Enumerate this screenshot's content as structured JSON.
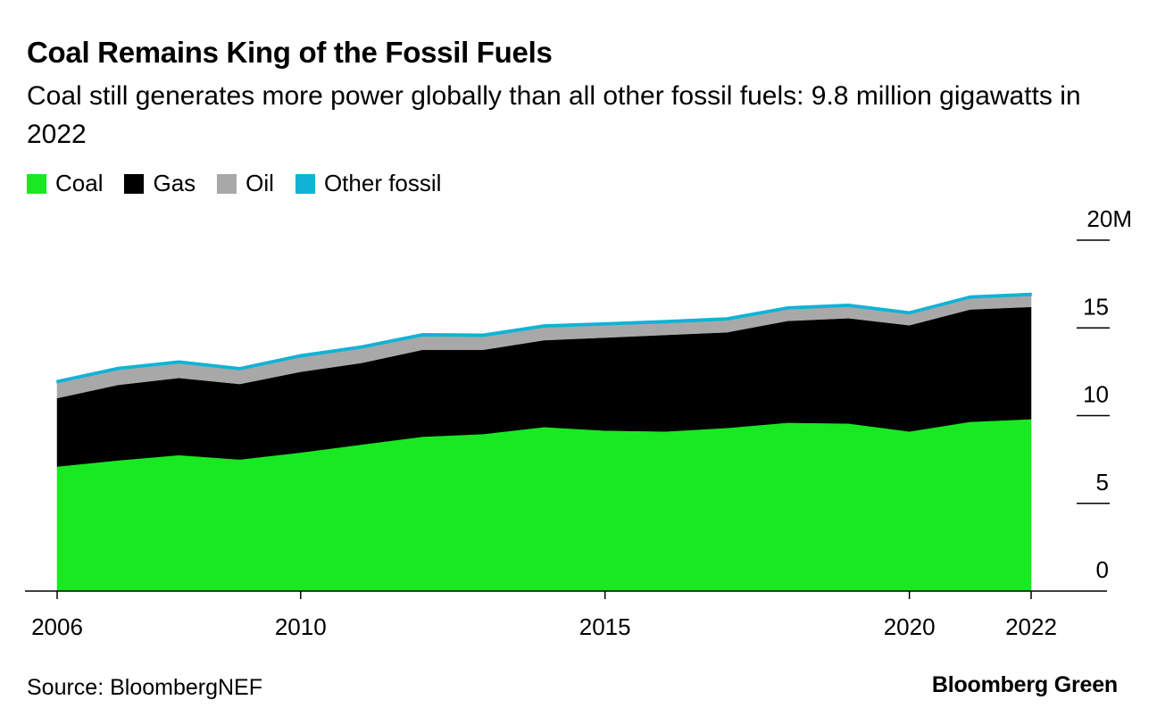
{
  "title": "Coal Remains King of the Fossil Fuels",
  "subtitle": "Coal still generates more power globally than all other fossil fuels: 9.8 million gigawatts in 2022",
  "source": "Source: BloombergNEF",
  "brand": "Bloomberg Green",
  "colors": {
    "coal": "#18e922",
    "gas": "#000000",
    "oil": "#a8a8a8",
    "other": "#10b3d6"
  },
  "chart_data": {
    "type": "area",
    "stacked": true,
    "x": [
      2006,
      2007,
      2008,
      2009,
      2010,
      2011,
      2012,
      2013,
      2014,
      2015,
      2016,
      2017,
      2018,
      2019,
      2020,
      2021,
      2022
    ],
    "series": [
      {
        "name": "Coal",
        "color": "#18e922",
        "values": [
          7.1,
          7.45,
          7.75,
          7.5,
          7.9,
          8.35,
          8.8,
          8.95,
          9.35,
          9.15,
          9.1,
          9.3,
          9.6,
          9.55,
          9.1,
          9.65,
          9.8
        ]
      },
      {
        "name": "Gas",
        "color": "#000000",
        "values": [
          3.9,
          4.3,
          4.4,
          4.3,
          4.6,
          4.65,
          4.95,
          4.8,
          4.95,
          5.3,
          5.5,
          5.45,
          5.8,
          6.0,
          6.05,
          6.4,
          6.4
        ]
      },
      {
        "name": "Oil",
        "color": "#a8a8a8",
        "values": [
          0.88,
          0.88,
          0.85,
          0.82,
          0.85,
          0.85,
          0.8,
          0.77,
          0.75,
          0.72,
          0.7,
          0.7,
          0.68,
          0.68,
          0.65,
          0.65,
          0.65
        ]
      },
      {
        "name": "Other fossil",
        "color": "#10b3d6",
        "values": [
          0.12,
          0.12,
          0.12,
          0.12,
          0.12,
          0.12,
          0.12,
          0.12,
          0.12,
          0.12,
          0.12,
          0.12,
          0.12,
          0.12,
          0.12,
          0.12,
          0.12
        ]
      }
    ],
    "x_ticks": [
      2006,
      2010,
      2015,
      2020,
      2022
    ],
    "y_ticks": [
      {
        "value": 0,
        "label": "0"
      },
      {
        "value": 5,
        "label": "5"
      },
      {
        "value": 10,
        "label": "10"
      },
      {
        "value": 15,
        "label": "15"
      },
      {
        "value": 20,
        "label": "20M"
      }
    ],
    "ylim": [
      0,
      20
    ],
    "xlim": [
      2006,
      2022
    ],
    "legend_position": "top-left",
    "grid": false
  }
}
